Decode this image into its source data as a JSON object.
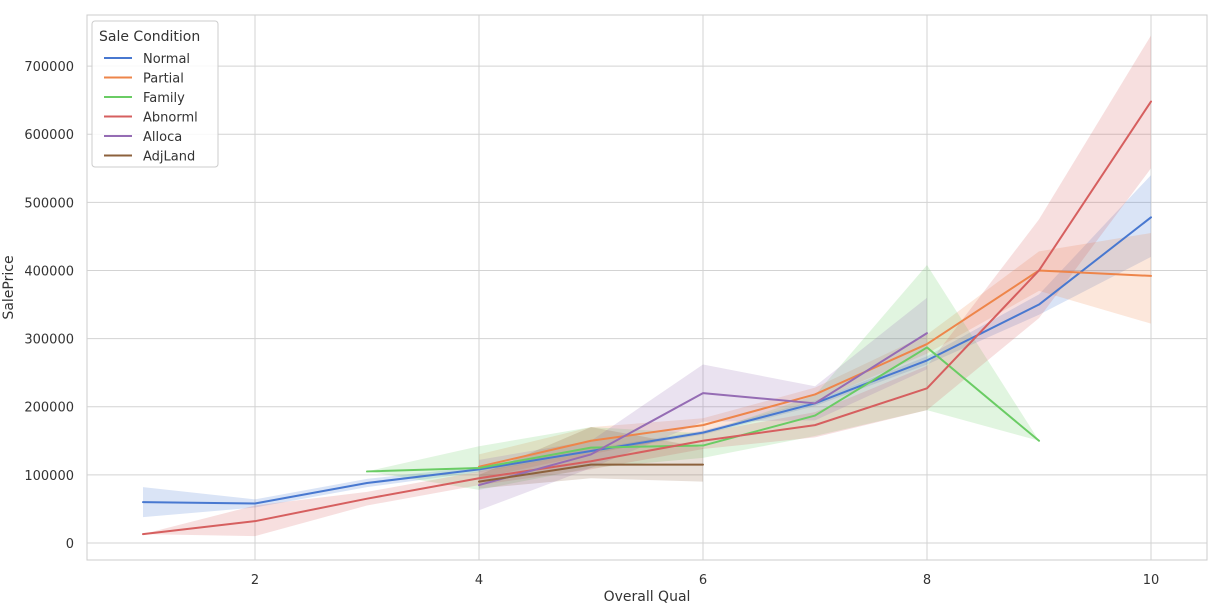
{
  "chart_data": {
    "type": "line",
    "title": "",
    "xlabel": "Overall Qual",
    "ylabel": "SalePrice",
    "xlim": [
      0.5,
      10.5
    ],
    "ylim": [
      -25000,
      775000
    ],
    "xticks": [
      2,
      4,
      6,
      8,
      10
    ],
    "yticks": [
      0,
      100000,
      200000,
      300000,
      400000,
      500000,
      600000,
      700000
    ],
    "grid": true,
    "legend": {
      "title": "Sale Condition",
      "placement": "top-left"
    },
    "series": [
      {
        "name": "Normal",
        "color": "#4878d0",
        "x": [
          1,
          2,
          3,
          4,
          5,
          6,
          7,
          8,
          9,
          10
        ],
        "y": [
          60000,
          58000,
          88000,
          108000,
          135000,
          162000,
          205000,
          268000,
          350000,
          478000
        ],
        "lower": [
          38000,
          52000,
          82000,
          104000,
          132000,
          159000,
          201000,
          262000,
          335000,
          420000
        ],
        "upper": [
          82000,
          64000,
          94000,
          112000,
          138000,
          165000,
          209000,
          274000,
          365000,
          540000
        ]
      },
      {
        "name": "Partial",
        "color": "#ee854a",
        "x": [
          4,
          5,
          6,
          7,
          8,
          9,
          10
        ],
        "y": [
          112000,
          150000,
          173000,
          218000,
          292000,
          400000,
          392000
        ],
        "lower": [
          95000,
          130000,
          163000,
          208000,
          278000,
          370000,
          322000
        ],
        "upper": [
          130000,
          170000,
          183000,
          228000,
          306000,
          428000,
          455000
        ]
      },
      {
        "name": "Family",
        "color": "#6acc64",
        "x": [
          3,
          4,
          5,
          6,
          7,
          8,
          9
        ],
        "y": [
          105000,
          110000,
          140000,
          143000,
          187000,
          287000,
          150000
        ],
        "lower": [
          105000,
          78000,
          110000,
          125000,
          157000,
          195000,
          150000
        ],
        "upper": [
          105000,
          142000,
          170000,
          161000,
          217000,
          408000,
          150000
        ]
      },
      {
        "name": "Abnorml",
        "color": "#d65f5f",
        "x": [
          1,
          2,
          3,
          4,
          5,
          6,
          7,
          8,
          9,
          10
        ],
        "y": [
          13000,
          32000,
          65000,
          95000,
          120000,
          150000,
          173000,
          227000,
          400000,
          648000
        ],
        "lower": [
          13000,
          10000,
          55000,
          85000,
          108000,
          138000,
          155000,
          195000,
          330000,
          550000
        ],
        "upper": [
          13000,
          55000,
          75000,
          105000,
          132000,
          162000,
          192000,
          260000,
          475000,
          745000
        ]
      },
      {
        "name": "Alloca",
        "color": "#956cb4",
        "x": [
          4,
          5,
          6,
          7,
          8
        ],
        "y": [
          85000,
          130000,
          220000,
          205000,
          308000
        ],
        "lower": [
          48000,
          110000,
          178000,
          180000,
          255000
        ],
        "upper": [
          122000,
          150000,
          262000,
          230000,
          360000
        ]
      },
      {
        "name": "AdjLand",
        "color": "#8c613c",
        "x": [
          4,
          5,
          6
        ],
        "y": [
          90000,
          115000,
          115000
        ],
        "lower": [
          80000,
          95000,
          90000
        ],
        "upper": [
          100000,
          170000,
          140000
        ]
      }
    ]
  }
}
